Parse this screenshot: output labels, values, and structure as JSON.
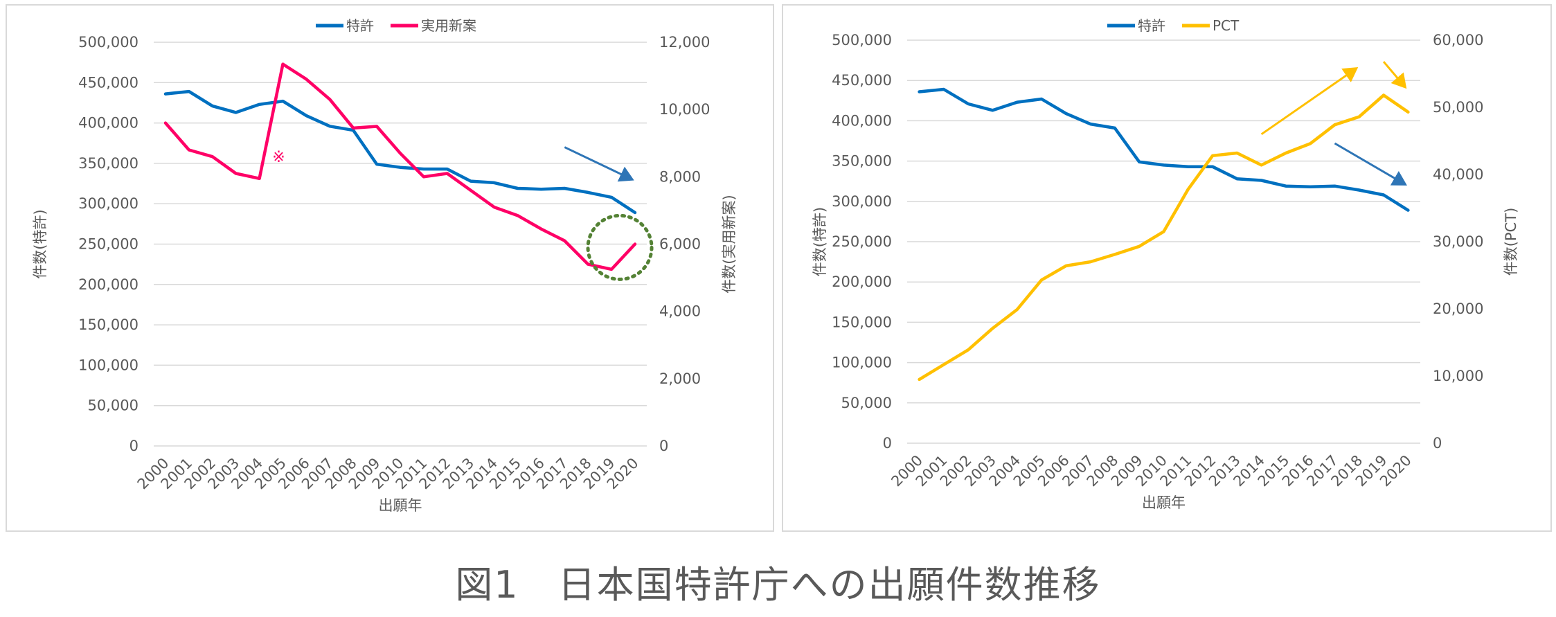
{
  "caption": "図1　日本国特許庁への出願件数推移",
  "chart_data": [
    {
      "type": "line",
      "title": "",
      "xlabel": "出願年",
      "ylabel_left": "件数(特許)",
      "ylabel_right": "件数(実用新案)",
      "ylim_left": [
        0,
        500000
      ],
      "ylim_right": [
        0,
        12000
      ],
      "yticks_left": [
        "0",
        "50,000",
        "100,000",
        "150,000",
        "200,000",
        "250,000",
        "300,000",
        "350,000",
        "400,000",
        "450,000",
        "500,000"
      ],
      "yticks_right": [
        "0",
        "2,000",
        "4,000",
        "6,000",
        "8,000",
        "10,000",
        "12,000"
      ],
      "categories": [
        "2000",
        "2001",
        "2002",
        "2003",
        "2004",
        "2005",
        "2006",
        "2007",
        "2008",
        "2009",
        "2010",
        "2011",
        "2012",
        "2013",
        "2014",
        "2015",
        "2016",
        "2017",
        "2018",
        "2019",
        "2020"
      ],
      "legend_position": "top-center",
      "grid": true,
      "series": [
        {
          "name": "特許",
          "axis": "left",
          "color": "#0070c0",
          "values": [
            436000,
            439000,
            421000,
            413000,
            423000,
            427000,
            409000,
            396000,
            391000,
            349000,
            345000,
            343000,
            343000,
            328000,
            326000,
            319000,
            318000,
            319000,
            314000,
            308000,
            289000
          ]
        },
        {
          "name": "実用新案",
          "axis": "right",
          "color": "#ff0066",
          "values": [
            9600,
            8800,
            8600,
            8100,
            7950,
            11350,
            10900,
            10300,
            9450,
            9500,
            8700,
            8000,
            8100,
            7600,
            7100,
            6850,
            6450,
            6100,
            5400,
            5250,
            6000
          ]
        }
      ],
      "annotations": [
        {
          "type": "symbol",
          "text": "※",
          "near": "2005",
          "color": "#ff0066"
        },
        {
          "type": "arrow",
          "direction": "down-right",
          "color": "#2e75b6",
          "from": [
            "2017",
            370000
          ],
          "to": [
            "2020",
            330000
          ]
        },
        {
          "type": "dotted-circle",
          "color": "#548235",
          "around": "2020"
        }
      ]
    },
    {
      "type": "line",
      "title": "",
      "xlabel": "出願年",
      "ylabel_left": "件数(特許)",
      "ylabel_right": "件数(PCT)",
      "ylim_left": [
        0,
        500000
      ],
      "ylim_right": [
        0,
        60000
      ],
      "yticks_left": [
        "0",
        "50,000",
        "100,000",
        "150,000",
        "200,000",
        "250,000",
        "300,000",
        "350,000",
        "400,000",
        "450,000",
        "500,000"
      ],
      "yticks_right": [
        "0",
        "10,000",
        "20,000",
        "30,000",
        "40,000",
        "50,000",
        "60,000"
      ],
      "categories": [
        "2000",
        "2001",
        "2002",
        "2003",
        "2004",
        "2005",
        "2006",
        "2007",
        "2008",
        "2009",
        "2010",
        "2011",
        "2012",
        "2013",
        "2014",
        "2015",
        "2016",
        "2017",
        "2018",
        "2019",
        "2020"
      ],
      "legend_position": "top-center",
      "grid": true,
      "series": [
        {
          "name": "特許",
          "axis": "left",
          "color": "#0070c0",
          "values": [
            436000,
            439000,
            421000,
            413000,
            423000,
            427000,
            409000,
            396000,
            391000,
            349000,
            345000,
            343000,
            343000,
            328000,
            326000,
            319000,
            318000,
            319000,
            314000,
            308000,
            289000
          ]
        },
        {
          "name": "PCT",
          "axis": "right",
          "color": "#ffc000",
          "values": [
            9500,
            11700,
            13900,
            17100,
            19900,
            24300,
            26400,
            27000,
            28100,
            29300,
            31500,
            37800,
            42800,
            43200,
            41400,
            43200,
            44600,
            47400,
            48600,
            51800,
            49300
          ]
        }
      ],
      "annotations": [
        {
          "type": "arrow",
          "direction": "up-right",
          "color": "#ffc000",
          "from": [
            "2014",
            46000
          ],
          "to": [
            "2018",
            55800
          ]
        },
        {
          "type": "arrow",
          "direction": "down-right",
          "color": "#ffc000",
          "from": [
            "2019",
            56800
          ],
          "to": [
            "2020",
            53000
          ]
        },
        {
          "type": "arrow",
          "direction": "down-right",
          "color": "#2e75b6",
          "from": [
            "2017",
            372000
          ],
          "to": [
            "2020",
            321000
          ]
        }
      ]
    }
  ]
}
